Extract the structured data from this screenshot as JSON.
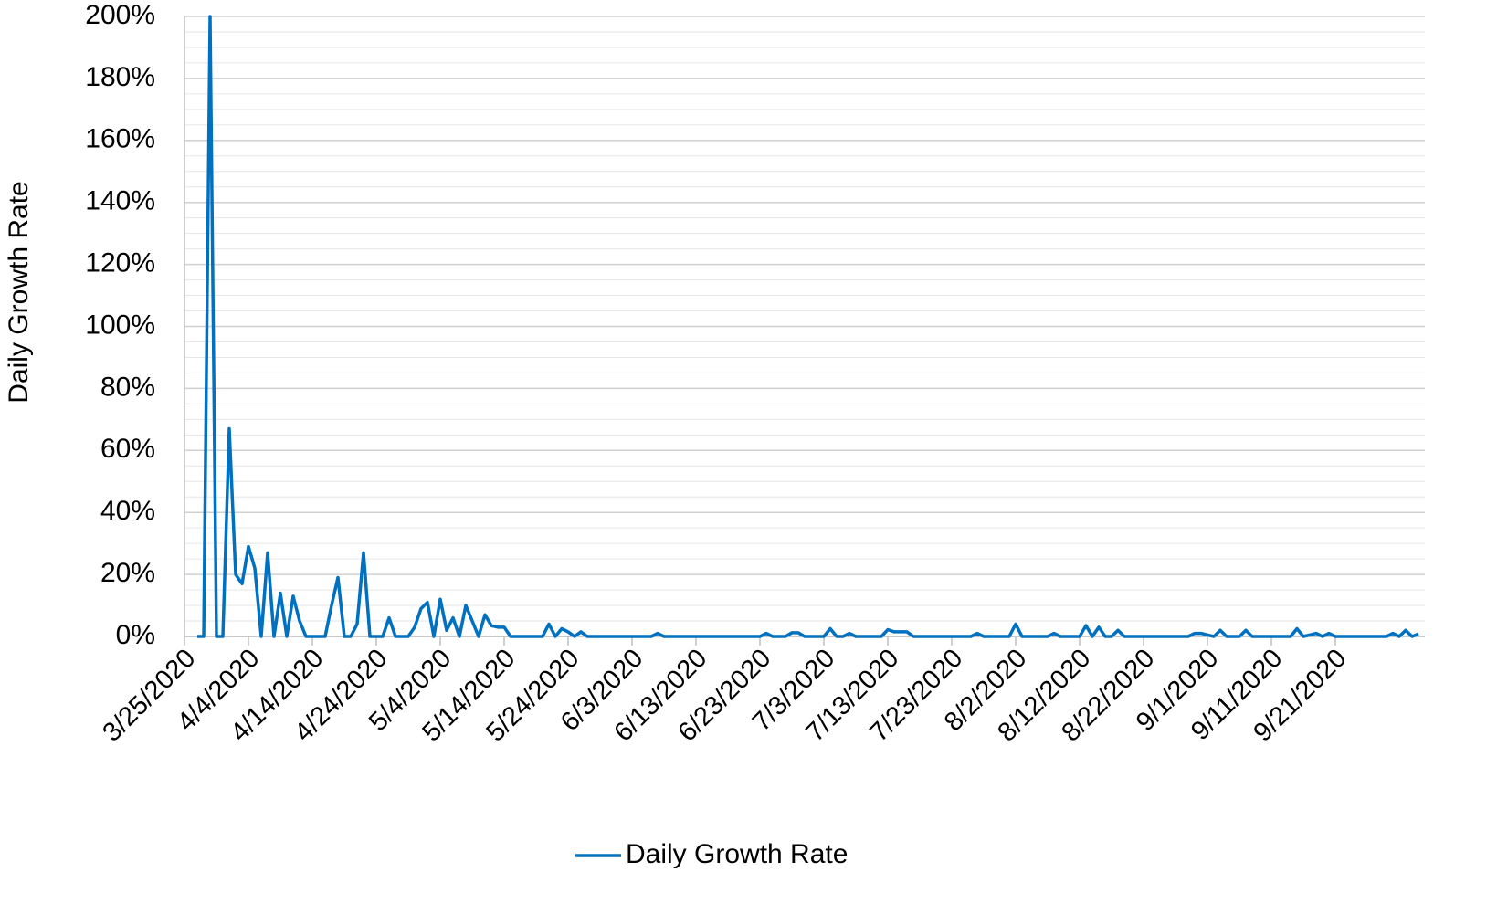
{
  "chart_data": {
    "type": "line",
    "y_label": "Daily Growth Rate",
    "x": [
      "3/27/2020",
      "3/28/2020",
      "3/29/2020",
      "3/30/2020",
      "3/31/2020",
      "4/1/2020",
      "4/2/2020",
      "4/3/2020",
      "4/4/2020",
      "4/5/2020",
      "4/6/2020",
      "4/7/2020",
      "4/8/2020",
      "4/9/2020",
      "4/10/2020",
      "4/11/2020",
      "4/12/2020",
      "4/13/2020",
      "4/14/2020",
      "4/15/2020",
      "4/16/2020",
      "4/17/2020",
      "4/18/2020",
      "4/19/2020",
      "4/20/2020",
      "4/21/2020",
      "4/22/2020",
      "4/23/2020",
      "4/24/2020",
      "4/25/2020",
      "4/26/2020",
      "4/27/2020",
      "4/28/2020",
      "4/29/2020",
      "4/30/2020",
      "5/1/2020",
      "5/2/2020",
      "5/3/2020",
      "5/4/2020",
      "5/5/2020",
      "5/6/2020",
      "5/7/2020",
      "5/8/2020",
      "5/9/2020",
      "5/10/2020",
      "5/11/2020",
      "5/12/2020",
      "5/13/2020",
      "5/14/2020",
      "5/15/2020",
      "5/16/2020",
      "5/17/2020",
      "5/18/2020",
      "5/19/2020",
      "5/20/2020",
      "5/21/2020",
      "5/22/2020",
      "5/23/2020",
      "5/24/2020",
      "5/25/2020",
      "5/26/2020",
      "5/27/2020",
      "5/28/2020",
      "5/29/2020",
      "5/30/2020",
      "5/31/2020",
      "6/1/2020",
      "6/2/2020",
      "6/3/2020",
      "6/4/2020",
      "6/5/2020",
      "6/6/2020",
      "6/7/2020",
      "6/8/2020",
      "6/9/2020",
      "6/10/2020",
      "6/11/2020",
      "6/12/2020",
      "6/13/2020",
      "6/14/2020",
      "6/15/2020",
      "6/16/2020",
      "6/17/2020",
      "6/18/2020",
      "6/19/2020",
      "6/20/2020",
      "6/21/2020",
      "6/22/2020",
      "6/23/2020",
      "6/24/2020",
      "6/25/2020",
      "6/26/2020",
      "6/27/2020",
      "6/28/2020",
      "6/29/2020",
      "6/30/2020",
      "7/1/2020",
      "7/2/2020",
      "7/3/2020",
      "7/4/2020",
      "7/5/2020",
      "7/6/2020",
      "7/7/2020",
      "7/8/2020",
      "7/9/2020",
      "7/10/2020",
      "7/11/2020",
      "7/12/2020",
      "7/13/2020",
      "7/14/2020",
      "7/15/2020",
      "7/16/2020",
      "7/17/2020",
      "7/18/2020",
      "7/19/2020",
      "7/20/2020",
      "7/21/2020",
      "7/22/2020",
      "7/23/2020",
      "7/24/2020",
      "7/25/2020",
      "7/26/2020",
      "7/27/2020",
      "7/28/2020",
      "7/29/2020",
      "7/30/2020",
      "7/31/2020",
      "8/1/2020",
      "8/2/2020",
      "8/3/2020",
      "8/4/2020",
      "8/5/2020",
      "8/6/2020",
      "8/7/2020",
      "8/8/2020",
      "8/9/2020",
      "8/10/2020",
      "8/11/2020",
      "8/12/2020",
      "8/13/2020",
      "8/14/2020",
      "8/15/2020",
      "8/16/2020",
      "8/17/2020",
      "8/18/2020",
      "8/19/2020",
      "8/20/2020",
      "8/21/2020",
      "8/22/2020",
      "8/23/2020",
      "8/24/2020",
      "8/25/2020",
      "8/26/2020",
      "8/27/2020",
      "8/28/2020",
      "8/29/2020",
      "8/30/2020",
      "8/31/2020",
      "9/1/2020",
      "9/2/2020",
      "9/3/2020",
      "9/4/2020",
      "9/5/2020",
      "9/6/2020",
      "9/7/2020",
      "9/8/2020",
      "9/9/2020",
      "9/10/2020",
      "9/11/2020",
      "9/12/2020",
      "9/13/2020",
      "9/14/2020",
      "9/15/2020",
      "9/16/2020",
      "9/17/2020",
      "9/18/2020",
      "9/19/2020",
      "9/20/2020",
      "9/21/2020",
      "9/22/2020",
      "9/23/2020",
      "9/24/2020",
      "9/25/2020",
      "9/26/2020",
      "9/27/2020",
      "9/28/2020",
      "9/29/2020",
      "9/30/2020",
      "10/1/2020",
      "10/2/2020",
      "10/3/2020",
      "10/4/2020"
    ],
    "series": [
      {
        "name": "Daily Growth Rate",
        "color": "#0070c0",
        "values": [
          0,
          0,
          200,
          0,
          0,
          67,
          20,
          17,
          29,
          22,
          0,
          27,
          0,
          14,
          0,
          13,
          5,
          0,
          0,
          0,
          0,
          10,
          19,
          0,
          0,
          4,
          27,
          0,
          0,
          0,
          6,
          0,
          0,
          0,
          3,
          9,
          11,
          0,
          12,
          2,
          6,
          0,
          10,
          5,
          0,
          7,
          3.5,
          3,
          3,
          0,
          0,
          0,
          0,
          0,
          0,
          4,
          0,
          2.5,
          1.5,
          0,
          1.5,
          0,
          0,
          0,
          0,
          0,
          0,
          0,
          0,
          0,
          0,
          0,
          1,
          0,
          0,
          0,
          0,
          0,
          0,
          0,
          0,
          0,
          0,
          0,
          0,
          0,
          0,
          0,
          0,
          1,
          0,
          0,
          0,
          1.2,
          1.2,
          0,
          0,
          0,
          0,
          2.5,
          0,
          0,
          1,
          0,
          0,
          0,
          0,
          0,
          2.2,
          1.5,
          1.5,
          1.5,
          0,
          0,
          0,
          0,
          0,
          0,
          0,
          0,
          0,
          0,
          1,
          0,
          0,
          0,
          0,
          0,
          4,
          0,
          0,
          0,
          0,
          0,
          1,
          0,
          0,
          0,
          0,
          3.5,
          0,
          3,
          0,
          0,
          2,
          0,
          0,
          0,
          0,
          0,
          0,
          0,
          0,
          0,
          0,
          0,
          1,
          1,
          0.5,
          0,
          2,
          0,
          0,
          0,
          2,
          0,
          0,
          0,
          0,
          0,
          0,
          0,
          2.5,
          0,
          0.5,
          1,
          0,
          1,
          0,
          0,
          0,
          0,
          0,
          0,
          0,
          0,
          0,
          1,
          0,
          2,
          0,
          0.8
        ]
      }
    ],
    "xlim": [
      "3/25/2020",
      "10/5/2020"
    ],
    "xticks": [
      "3/25/2020",
      "4/4/2020",
      "4/14/2020",
      "4/24/2020",
      "5/4/2020",
      "5/14/2020",
      "5/24/2020",
      "6/3/2020",
      "6/13/2020",
      "6/23/2020",
      "7/3/2020",
      "7/13/2020",
      "7/23/2020",
      "8/2/2020",
      "8/12/2020",
      "8/22/2020",
      "9/1/2020",
      "9/11/2020",
      "9/21/2020"
    ],
    "ylim": [
      0,
      200
    ],
    "yticks": [
      {
        "value": 0,
        "label": "0%"
      },
      {
        "value": 20,
        "label": "20%"
      },
      {
        "value": 40,
        "label": "40%"
      },
      {
        "value": 60,
        "label": "60%"
      },
      {
        "value": 80,
        "label": "80%"
      },
      {
        "value": 100,
        "label": "100%"
      },
      {
        "value": 120,
        "label": "120%"
      },
      {
        "value": 140,
        "label": "140%"
      },
      {
        "value": 160,
        "label": "160%"
      },
      {
        "value": 180,
        "label": "180%"
      },
      {
        "value": 200,
        "label": "200%"
      }
    ],
    "grid": true,
    "minor_grid_step": 5,
    "legend": "bottom"
  }
}
